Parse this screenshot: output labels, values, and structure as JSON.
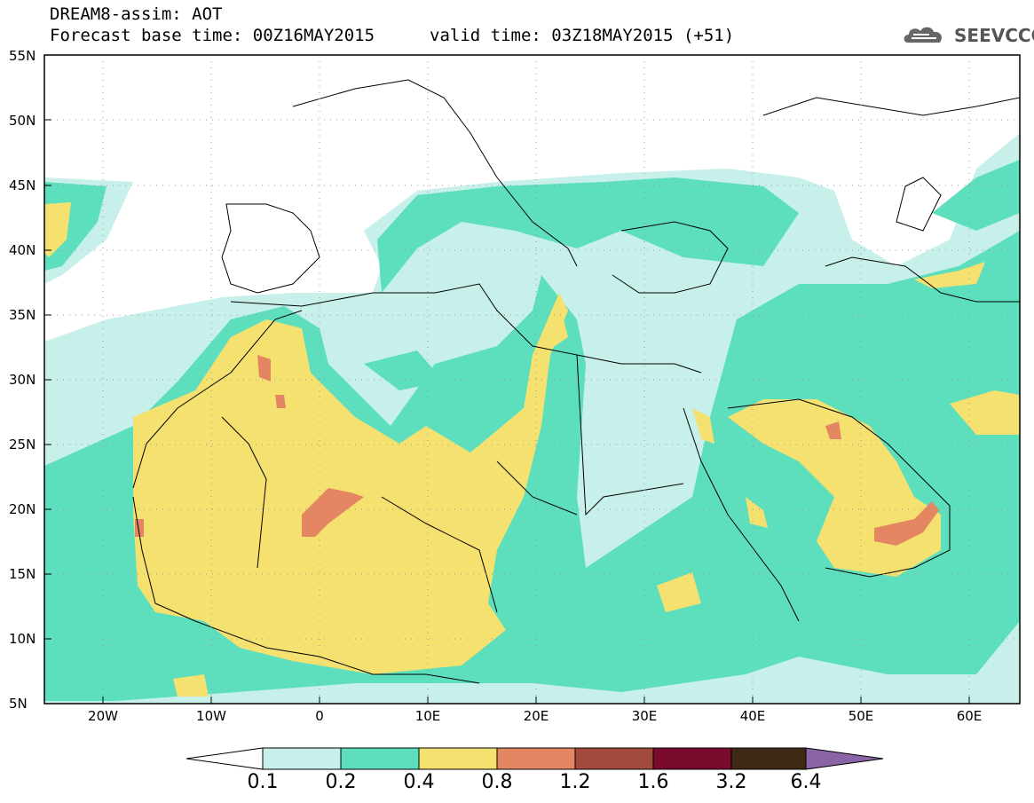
{
  "header": {
    "model_line": "DREAM8-assim: AOT",
    "base_time_line": "Forecast base time: 00Z16MAY2015",
    "valid_time_line": "valid time: 03Z18MAY2015 (+51)",
    "logo_text": "SEEVCCC",
    "logo_icon": "cloud-icon"
  },
  "map": {
    "projection": "lat-lon",
    "lon_range": [
      -25,
      65
    ],
    "lat_range": [
      5,
      55
    ],
    "grid": true,
    "lat_labels": [
      "55N",
      "50N",
      "45N",
      "40N",
      "35N",
      "30N",
      "25N",
      "20N",
      "15N",
      "10N",
      "5N"
    ],
    "lon_labels": [
      "20W",
      "10W",
      "0",
      "10E",
      "20E",
      "30E",
      "40E",
      "50E",
      "60E"
    ]
  },
  "colorbar": {
    "labels": [
      "0.1",
      "0.2",
      "0.4",
      "0.8",
      "1.2",
      "1.6",
      "3.2",
      "6.4"
    ],
    "colors": [
      "#ffffff",
      "#c8f0ea",
      "#5ddfbd",
      "#f5e170",
      "#e58663",
      "#a24a3c",
      "#7a0a2c",
      "#3d2914",
      "#8a64a6"
    ]
  }
}
